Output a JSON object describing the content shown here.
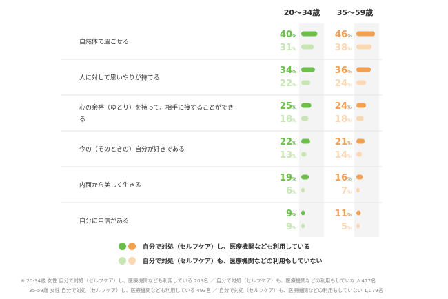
{
  "chart_data": {
    "type": "bar",
    "orientation": "horizontal",
    "groups": [
      {
        "name": "20〜34歳",
        "series": [
          {
            "name": "自分で対処（セルフケア）し、医療機関なども利用している",
            "color": "#6cc04a"
          },
          {
            "name": "自分で対処（セルフケア）も、医療機関などの利用もしていない",
            "color": "#c7e6b4"
          }
        ]
      },
      {
        "name": "35〜59歳",
        "series": [
          {
            "name": "自分で対処（セルフケア）し、医療機関なども利用している",
            "color": "#f2a052"
          },
          {
            "name": "自分で対処（セルフケア）も、医療機関などの利用もしていない",
            "color": "#fad8b4"
          }
        ]
      }
    ],
    "categories": [
      "自然体で過ごせる",
      "人に対して思いやりが持てる",
      "心の余裕（ゆとり）を持って、相手に接することができる",
      "今の（そのときの）自分が好きである",
      "内面から美しく生きる",
      "自分に自信がある"
    ],
    "category_lines": [
      [
        "自然体で過ごせる"
      ],
      [
        "人に対して思いやりが持てる"
      ],
      [
        "心の余裕（ゆとり）を持って、相手に接することができ",
        "る"
      ],
      [
        "今の（そのときの）自分が好きである"
      ],
      [
        "内面から美しく生きる"
      ],
      [
        "自分に自信がある"
      ]
    ],
    "values": {
      "young_use": [
        40,
        34,
        25,
        22,
        19,
        9
      ],
      "young_none": [
        31,
        22,
        18,
        13,
        6,
        9
      ],
      "old_use": [
        46,
        36,
        24,
        21,
        16,
        11
      ],
      "old_none": [
        38,
        24,
        18,
        14,
        7,
        5
      ]
    },
    "unit": "%",
    "xlim": [
      0,
      46
    ]
  },
  "legend": {
    "item1": "自分で対処（セルフケア）し、医療機関なども利用している",
    "item2": "自分で対処（セルフケア）も、医療機関などの利用もしていない"
  },
  "footnote": {
    "line1": "※ 20-34歳 女性 自分で対処（セルフケア）し、医療機関なども利用している 209名 ／ 自分で対処（セルフケア）も、医療機関などの利用もしていない 477名",
    "line2": "35-59歳 女性 自分で対処（セルフケア）し、医療機関なども利用している 493名 ／ 自分で対処（セルフケア）も、医療機関などの利用もしていない 1,079名"
  }
}
